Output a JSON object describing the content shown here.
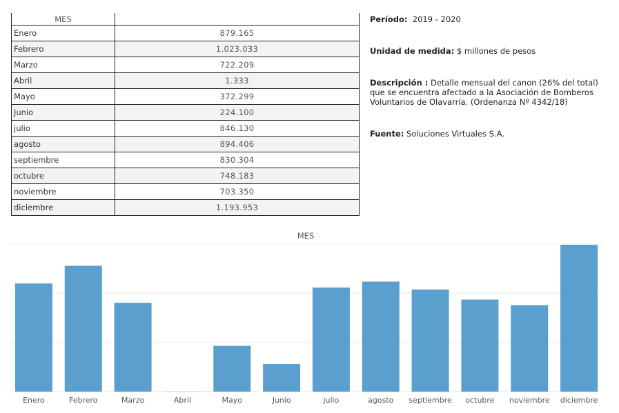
{
  "table": {
    "header_month": "MES",
    "header_value": "",
    "rows": [
      {
        "month": "Enero",
        "value": "879.165"
      },
      {
        "month": "Febrero",
        "value": "1.023.033"
      },
      {
        "month": "Marzo",
        "value": "722.209"
      },
      {
        "month": "Abril",
        "value": "1.333"
      },
      {
        "month": "Mayo",
        "value": "372.299"
      },
      {
        "month": "Junio",
        "value": "224.100"
      },
      {
        "month": "julio",
        "value": "846.130"
      },
      {
        "month": "agosto",
        "value": "894.406"
      },
      {
        "month": "septiembre",
        "value": "830.304"
      },
      {
        "month": "octubre",
        "value": "748.183"
      },
      {
        "month": "noviembre",
        "value": "703.350"
      },
      {
        "month": "diciembre",
        "value": "1.193.953"
      }
    ]
  },
  "info": {
    "periodo_label": "Período:",
    "periodo_value": "2019 - 2020",
    "unidad_label": "Unidad de medida:",
    "unidad_value": "$ millones de pesos",
    "descripcion_label": "Descripción :",
    "descripcion_value": "Detalle mensual del canon (26% del total) que se encuentra afectado a la Asociación de Bomberos Voluntarios de Olavarría. (Ordenanza Nº 4342/18)",
    "fuente_label": "Fuente:",
    "fuente_value": "Soluciones Virtuales S.A."
  },
  "chart_data": {
    "type": "bar",
    "title": "MES",
    "categories": [
      "Enero",
      "Febrero",
      "Marzo",
      "Abril",
      "Mayo",
      "Junio",
      "julio",
      "agosto",
      "septiembre",
      "octubre",
      "noviembre",
      "diciembre"
    ],
    "values": [
      879165,
      1023033,
      722209,
      1333,
      372299,
      224100,
      846130,
      894406,
      830304,
      748183,
      703350,
      1193953
    ],
    "ylim": [
      0,
      1250000
    ],
    "grid": true,
    "bar_color": "#5b9fcf"
  }
}
